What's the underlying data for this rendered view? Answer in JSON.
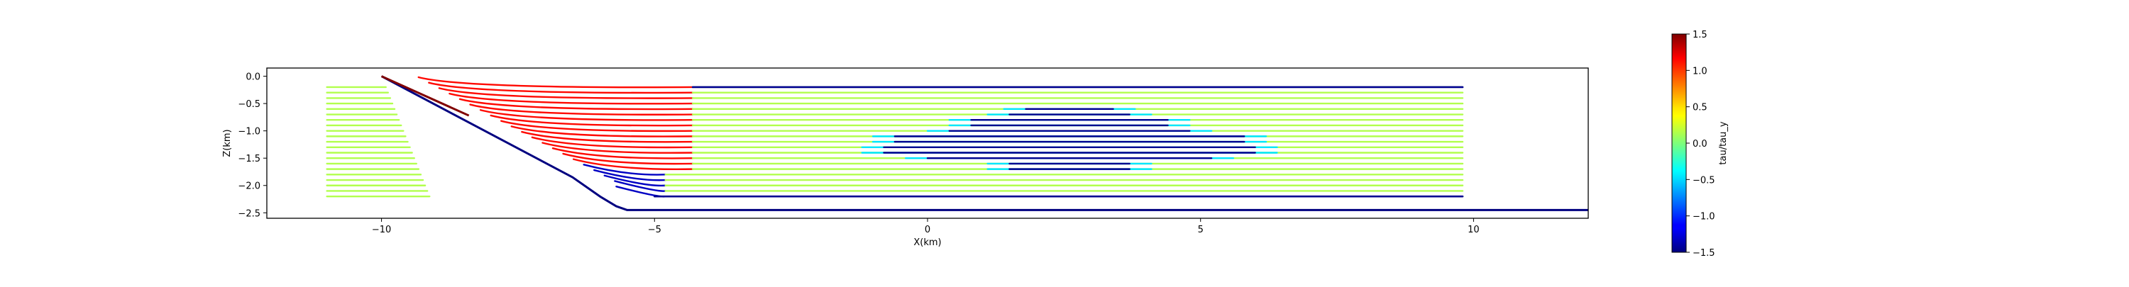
{
  "chart_data": {
    "type": "line",
    "title": "",
    "xlabel": "X(km)",
    "ylabel": "Z(km)",
    "xlim": [
      -12.1,
      12.1
    ],
    "ylim": [
      -2.6,
      0.15
    ],
    "xticks": [
      -10,
      -5,
      0,
      5,
      10
    ],
    "xtick_labels": [
      "−10",
      "−5",
      "0",
      "5",
      "10"
    ],
    "yticks": [
      0.0,
      -0.5,
      -1.0,
      -1.5,
      -2.0,
      -2.5
    ],
    "ytick_labels": [
      "0.0",
      "−0.5",
      "−1.0",
      "−1.5",
      "−2.0",
      "−2.5"
    ],
    "grid": false,
    "colormap": "jet",
    "colorbar": {
      "label": "tau/tau_y",
      "range": [
        -1.5,
        1.5
      ],
      "ticks": [
        1.5,
        1.0,
        0.5,
        0.0,
        -0.5,
        -1.0,
        -1.5
      ],
      "tick_labels": [
        "1.5",
        "1.0",
        "0.5",
        "0.0",
        "−0.5",
        "−1.0",
        "−1.5"
      ]
    },
    "fault": {
      "value": -1.5,
      "x": [
        -10.0,
        -6.5,
        -6.0,
        -5.7,
        -5.5,
        12.1
      ],
      "y": [
        0.0,
        -1.85,
        -2.2,
        -2.38,
        -2.45,
        -2.45
      ]
    },
    "fault_top_segment": {
      "value": 1.5,
      "x": [
        -10.0,
        -8.4
      ],
      "y": [
        0.0,
        -0.72
      ]
    },
    "layer_depths": [
      -0.2,
      -0.3,
      -0.4,
      -0.5,
      -0.6,
      -0.7,
      -0.8,
      -0.9,
      -1.0,
      -1.1,
      -1.2,
      -1.3,
      -1.4,
      -1.5,
      -1.6,
      -1.7,
      -1.8,
      -1.9,
      -2.0,
      -2.1,
      -2.2
    ],
    "line_x_range": [
      -11.0,
      9.8
    ],
    "background_value": 0.15,
    "near_fault_value": 1.1,
    "near_fault_shallow_value": -1.3,
    "bottom_band": {
      "depth": -2.2,
      "x": [
        -5.0,
        9.8
      ],
      "value": -1.45
    },
    "top_band": {
      "depth": -0.2,
      "x": [
        -4.3,
        9.8
      ],
      "value": -1.45
    },
    "stress_drop_zone": {
      "center_x": 2.6,
      "top_depth": -0.55,
      "bottom_depth": -1.8,
      "half_widths": [
        0.8,
        1.1,
        1.4,
        1.8,
        2.2,
        2.7,
        3.2,
        3.6,
        3.4,
        2.6,
        1.8,
        1.1,
        0.6
      ],
      "value": -1.45,
      "edge_value": -0.45
    }
  }
}
